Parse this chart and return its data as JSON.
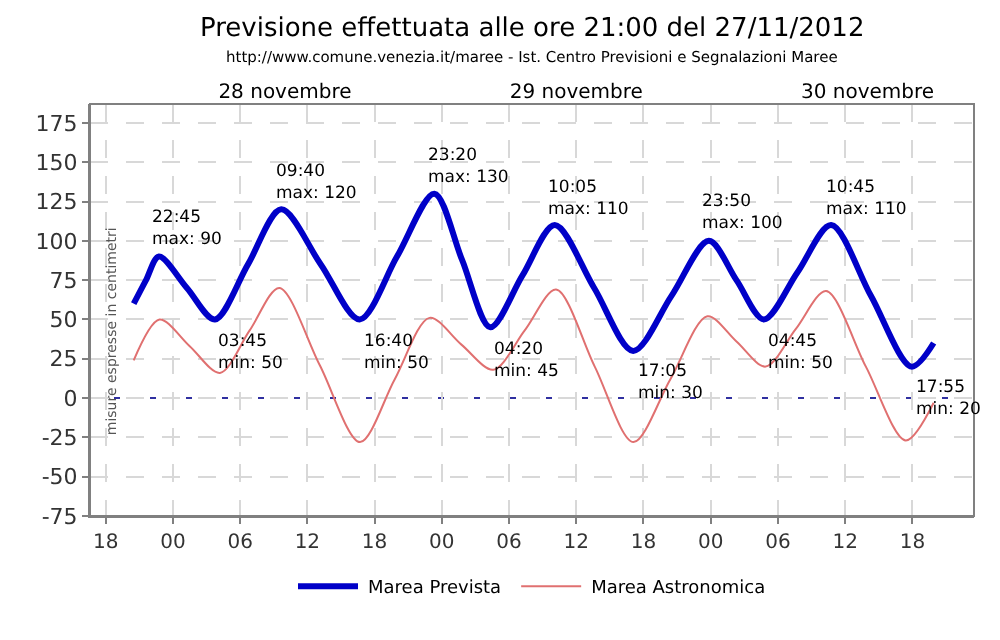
{
  "chart_data": {
    "type": "line",
    "title": "Previsione effettuata alle ore 21:00 del 27/11/2012",
    "subtitle": "http://www.comune.venezia.it/maree - Ist. Centro Previsioni e Segnalazioni Maree",
    "ylabel": "misure espresse in centimetri",
    "xlim": [
      "2012-11-27T16:36",
      "2012-11-30T23:30"
    ],
    "xticks": [
      {
        "value": "2012-11-27T18:00",
        "label": "18"
      },
      {
        "value": "2012-11-28T00:00",
        "label": "00"
      },
      {
        "value": "2012-11-28T06:00",
        "label": "06"
      },
      {
        "value": "2012-11-28T12:00",
        "label": "12"
      },
      {
        "value": "2012-11-28T18:00",
        "label": "18"
      },
      {
        "value": "2012-11-29T00:00",
        "label": "00"
      },
      {
        "value": "2012-11-29T06:00",
        "label": "06"
      },
      {
        "value": "2012-11-29T12:00",
        "label": "12"
      },
      {
        "value": "2012-11-29T18:00",
        "label": "18"
      },
      {
        "value": "2012-11-30T00:00",
        "label": "00"
      },
      {
        "value": "2012-11-30T06:00",
        "label": "06"
      },
      {
        "value": "2012-11-30T12:00",
        "label": "12"
      },
      {
        "value": "2012-11-30T18:00",
        "label": "18"
      }
    ],
    "x2lim": [
      "2012-11-27T16:36",
      "2012-11-30T23:30"
    ],
    "x2ticks": [
      {
        "value": "2012-11-28T10:00",
        "label": "28 novembre"
      },
      {
        "value": "2012-11-29T12:00",
        "label": "29 novembre"
      },
      {
        "value": "2012-11-30T14:00",
        "label": "30 novembre"
      }
    ],
    "ylim": [
      -75,
      187
    ],
    "yticks": [
      -75,
      -50,
      -25,
      0,
      25,
      50,
      75,
      100,
      125,
      150,
      175
    ],
    "grid": true,
    "legend": "bottom",
    "marker": "none",
    "line_style": "solid",
    "series": [
      {
        "name": "Marea Prevista",
        "color": "#0000c8",
        "x": [
          "2012-11-27T20:30",
          "2012-11-27T21:36",
          "2012-11-27T22:45",
          "2012-11-28T01:15",
          "2012-11-28T03:45",
          "2012-11-28T06:42",
          "2012-11-28T09:40",
          "2012-11-28T13:12",
          "2012-11-28T16:40",
          "2012-11-28T20:00",
          "2012-11-28T23:20",
          "2012-11-29T01:48",
          "2012-11-29T04:20",
          "2012-11-29T07:12",
          "2012-11-29T10:05",
          "2012-11-29T13:36",
          "2012-11-29T17:05",
          "2012-11-29T20:30",
          "2012-11-29T23:50",
          "2012-11-30T02:18",
          "2012-11-30T04:45",
          "2012-11-30T07:45",
          "2012-11-30T10:45",
          "2012-11-30T14:18",
          "2012-11-30T17:55",
          "2012-11-30T19:54"
        ],
        "values": [
          60,
          75,
          90,
          70,
          50,
          85,
          120,
          85,
          50,
          90,
          130,
          88,
          45,
          78,
          110,
          70,
          30,
          65,
          100,
          75,
          50,
          80,
          110,
          65,
          20,
          35
        ]
      },
      {
        "name": "Marea Astronomica",
        "color": "#e07070",
        "x": [
          "2012-11-27T20:30",
          "2012-11-27T22:48",
          "2012-11-28T01:30",
          "2012-11-28T04:12",
          "2012-11-28T06:51",
          "2012-11-28T09:30",
          "2012-11-28T13:06",
          "2012-11-28T16:42",
          "2012-11-28T19:48",
          "2012-11-28T22:54",
          "2012-11-29T01:45",
          "2012-11-29T04:36",
          "2012-11-29T07:24",
          "2012-11-29T10:12",
          "2012-11-29T13:39",
          "2012-11-29T17:06",
          "2012-11-29T20:24",
          "2012-11-29T23:42",
          "2012-11-30T02:18",
          "2012-11-30T04:54",
          "2012-11-30T07:36",
          "2012-11-30T10:18",
          "2012-11-30T13:51",
          "2012-11-30T17:24",
          "2012-11-30T19:54"
        ],
        "values": [
          24,
          50,
          33,
          16,
          43,
          70,
          21,
          -28,
          12,
          51,
          34,
          18,
          43,
          69,
          20,
          -28,
          12,
          52,
          36,
          20,
          44,
          68,
          20,
          -27,
          -3
        ]
      }
    ],
    "ref_lines": [
      {
        "axis": "y",
        "value": 0,
        "color": "#3030a0",
        "line_style": "dotted"
      }
    ],
    "annotations": [
      {
        "text": "22:45\nmax: 90",
        "x": "2012-11-27T22:45",
        "y": 90
      },
      {
        "text": "03:45\nmin: 50",
        "x": "2012-11-28T03:45",
        "y": 50
      },
      {
        "text": "09:40\nmax: 120",
        "x": "2012-11-28T09:40",
        "y": 120
      },
      {
        "text": "16:40\nmin: 50",
        "x": "2012-11-28T16:40",
        "y": 50
      },
      {
        "text": "23:20\nmax: 130",
        "x": "2012-11-28T23:20",
        "y": 130
      },
      {
        "text": "04:20\nmin: 45",
        "x": "2012-11-29T04:20",
        "y": 45
      },
      {
        "text": "10:05\nmax: 110",
        "x": "2012-11-29T10:05",
        "y": 110
      },
      {
        "text": "17:05\nmin: 30",
        "x": "2012-11-29T17:05",
        "y": 30
      },
      {
        "text": "23:50\nmax: 100",
        "x": "2012-11-29T23:50",
        "y": 100
      },
      {
        "text": "04:45\nmin: 50",
        "x": "2012-11-30T04:45",
        "y": 50
      },
      {
        "text": "10:45\nmax: 110",
        "x": "2012-11-30T10:45",
        "y": 110
      },
      {
        "text": "17:55\nmin: 20",
        "x": "2012-11-30T17:55",
        "y": 20
      }
    ]
  }
}
